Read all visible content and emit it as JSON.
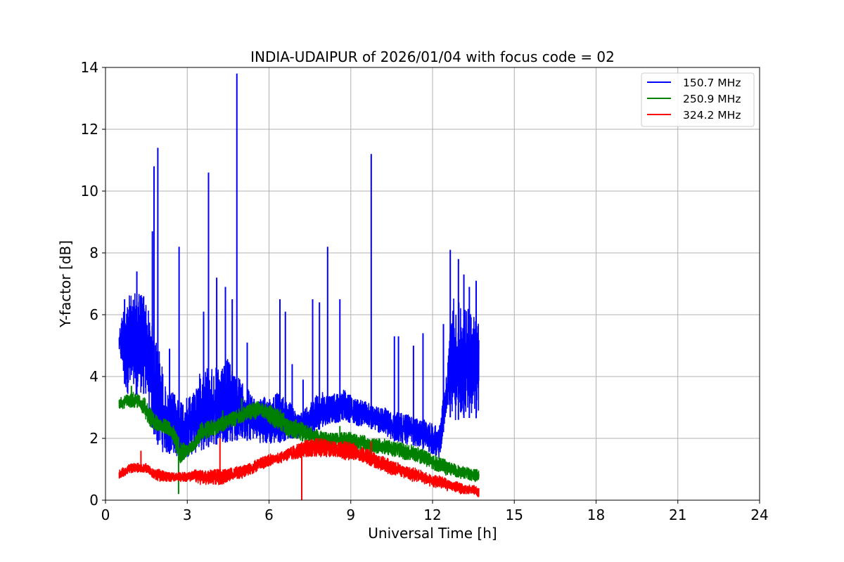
{
  "chart_data": {
    "type": "line",
    "title": "INDIA-UDAIPUR of 2026/01/04 with focus code = 02",
    "xlabel": "Universal Time [h]",
    "ylabel": "Y-factor [dB]",
    "xlim": [
      0,
      24
    ],
    "ylim": [
      0,
      14
    ],
    "xticks": [
      0,
      3,
      6,
      9,
      12,
      15,
      18,
      21,
      24
    ],
    "yticks": [
      0,
      2,
      4,
      6,
      8,
      10,
      12,
      14
    ],
    "grid": true,
    "legend_position": "top-right",
    "series": [
      {
        "name": "150.7 MHz",
        "color": "#0000ff",
        "x": [
          0.5,
          0.75,
          1.0,
          1.25,
          1.5,
          1.75,
          2.0,
          2.25,
          2.5,
          2.75,
          3.0,
          3.25,
          3.5,
          3.75,
          4.0,
          4.25,
          4.5,
          4.75,
          5.0,
          5.25,
          5.5,
          5.75,
          6.0,
          6.25,
          6.5,
          6.75,
          7.0,
          7.25,
          7.5,
          7.75,
          8.0,
          8.25,
          8.5,
          8.75,
          9.0,
          9.25,
          9.5,
          9.75,
          10.0,
          10.25,
          10.5,
          10.75,
          11.0,
          11.25,
          11.5,
          11.75,
          12.0,
          12.25,
          12.5,
          12.75,
          13.0,
          13.25,
          13.5,
          13.7
        ],
        "upper": [
          5.5,
          6.7,
          6.6,
          6.9,
          6.5,
          5.5,
          4.8,
          3.4,
          3.5,
          3.3,
          3.3,
          3.6,
          4.2,
          4.4,
          4.3,
          4.2,
          4.6,
          4.2,
          3.8,
          3.6,
          3.2,
          3.3,
          3.4,
          3.5,
          3.4,
          3.2,
          2.8,
          2.9,
          3.2,
          3.4,
          3.5,
          3.4,
          3.5,
          3.6,
          3.4,
          3.3,
          3.2,
          3.1,
          3.0,
          3.0,
          2.8,
          2.9,
          2.8,
          2.7,
          2.6,
          2.6,
          2.5,
          2.4,
          4.0,
          6.7,
          6.4,
          6.3,
          6.0,
          5.8
        ],
        "lower": [
          4.8,
          3.5,
          3.3,
          3.5,
          3.4,
          2.2,
          1.6,
          1.5,
          1.5,
          1.3,
          1.4,
          1.5,
          1.6,
          1.7,
          1.8,
          1.8,
          1.9,
          1.9,
          2.0,
          1.9,
          2.0,
          1.8,
          1.8,
          1.8,
          1.9,
          2.0,
          2.0,
          2.0,
          2.1,
          2.2,
          2.4,
          2.5,
          2.5,
          2.6,
          2.5,
          2.4,
          2.4,
          2.3,
          2.2,
          2.1,
          1.9,
          1.9,
          1.8,
          1.8,
          1.7,
          1.6,
          1.5,
          1.3,
          2.8,
          2.6,
          2.6,
          2.7,
          2.6,
          2.7
        ],
        "spikes": [
          {
            "x": 0.7,
            "y": 6.5
          },
          {
            "x": 1.15,
            "y": 7.4
          },
          {
            "x": 1.4,
            "y": 6.6
          },
          {
            "x": 1.72,
            "y": 8.7
          },
          {
            "x": 1.78,
            "y": 10.8
          },
          {
            "x": 1.92,
            "y": 11.4
          },
          {
            "x": 2.35,
            "y": 4.9
          },
          {
            "x": 2.7,
            "y": 8.2
          },
          {
            "x": 3.6,
            "y": 6.1
          },
          {
            "x": 3.78,
            "y": 10.6
          },
          {
            "x": 4.08,
            "y": 7.2
          },
          {
            "x": 4.4,
            "y": 6.9
          },
          {
            "x": 4.65,
            "y": 6.5
          },
          {
            "x": 4.82,
            "y": 13.8
          },
          {
            "x": 5.2,
            "y": 5.1
          },
          {
            "x": 6.4,
            "y": 6.5
          },
          {
            "x": 6.6,
            "y": 6.1
          },
          {
            "x": 6.85,
            "y": 4.4
          },
          {
            "x": 7.25,
            "y": 3.9
          },
          {
            "x": 7.6,
            "y": 6.5
          },
          {
            "x": 7.85,
            "y": 6.4
          },
          {
            "x": 8.15,
            "y": 8.2
          },
          {
            "x": 8.6,
            "y": 6.5
          },
          {
            "x": 9.75,
            "y": 11.2
          },
          {
            "x": 10.6,
            "y": 5.3
          },
          {
            "x": 10.75,
            "y": 5.3
          },
          {
            "x": 11.3,
            "y": 5.0
          },
          {
            "x": 11.65,
            "y": 5.4
          },
          {
            "x": 12.4,
            "y": 5.7
          },
          {
            "x": 12.65,
            "y": 8.1
          },
          {
            "x": 12.95,
            "y": 7.8
          },
          {
            "x": 13.15,
            "y": 7.3
          },
          {
            "x": 13.35,
            "y": 6.9
          },
          {
            "x": 13.6,
            "y": 7.1
          }
        ]
      },
      {
        "name": "250.9 MHz",
        "color": "#008000",
        "x": [
          0.5,
          0.75,
          1.0,
          1.25,
          1.5,
          1.75,
          2.0,
          2.25,
          2.5,
          2.75,
          3.0,
          3.25,
          3.5,
          3.75,
          4.0,
          4.25,
          4.5,
          4.75,
          5.0,
          5.25,
          5.5,
          5.75,
          6.0,
          6.25,
          6.5,
          6.75,
          7.0,
          7.25,
          7.5,
          7.75,
          8.0,
          8.25,
          8.5,
          8.75,
          9.0,
          9.25,
          9.5,
          9.75,
          10.0,
          10.25,
          10.5,
          10.75,
          11.0,
          11.25,
          11.5,
          11.75,
          12.0,
          12.25,
          12.5,
          12.75,
          13.0,
          13.25,
          13.5,
          13.7
        ],
        "upper": [
          3.3,
          3.4,
          3.5,
          3.4,
          3.3,
          2.8,
          2.7,
          2.6,
          2.4,
          1.9,
          1.8,
          2.0,
          2.5,
          2.6,
          2.6,
          2.7,
          2.8,
          2.9,
          3.0,
          3.1,
          3.2,
          3.2,
          3.1,
          3.0,
          2.9,
          2.6,
          2.6,
          2.5,
          2.4,
          2.3,
          2.2,
          2.2,
          2.2,
          2.2,
          2.2,
          2.1,
          2.1,
          2.0,
          2.0,
          2.0,
          1.9,
          1.9,
          1.8,
          1.8,
          1.7,
          1.6,
          1.5,
          1.4,
          1.3,
          1.2,
          1.1,
          1.1,
          1.0,
          1.0
        ],
        "lower": [
          2.9,
          3.0,
          3.0,
          3.0,
          2.5,
          2.3,
          2.2,
          2.1,
          1.8,
          1.2,
          1.4,
          1.6,
          1.9,
          2.0,
          2.1,
          2.2,
          2.3,
          2.4,
          2.5,
          2.6,
          2.6,
          2.7,
          2.5,
          2.3,
          2.2,
          2.0,
          2.0,
          1.9,
          1.8,
          1.8,
          1.7,
          1.7,
          1.7,
          1.7,
          1.7,
          1.6,
          1.6,
          1.5,
          1.5,
          1.5,
          1.4,
          1.4,
          1.3,
          1.3,
          1.2,
          1.1,
          1.0,
          0.9,
          0.8,
          0.8,
          0.7,
          0.7,
          0.6,
          0.6
        ],
        "spikes": [
          {
            "x": 0.95,
            "y": 3.7
          },
          {
            "x": 2.68,
            "y": 0.2
          },
          {
            "x": 4.3,
            "y": 2.9
          },
          {
            "x": 5.0,
            "y": 3.3
          },
          {
            "x": 7.0,
            "y": 2.3
          },
          {
            "x": 8.6,
            "y": 2.4
          }
        ]
      },
      {
        "name": "324.2 MHz",
        "color": "#ff0000",
        "x": [
          0.5,
          0.75,
          1.0,
          1.25,
          1.5,
          1.75,
          2.0,
          2.25,
          2.5,
          2.75,
          3.0,
          3.25,
          3.5,
          3.75,
          4.0,
          4.25,
          4.5,
          4.75,
          5.0,
          5.25,
          5.5,
          5.75,
          6.0,
          6.25,
          6.5,
          6.75,
          7.0,
          7.25,
          7.5,
          7.75,
          8.0,
          8.25,
          8.5,
          8.75,
          9.0,
          9.25,
          9.5,
          9.75,
          10.0,
          10.25,
          10.5,
          10.75,
          11.0,
          11.25,
          11.5,
          11.75,
          12.0,
          12.25,
          12.5,
          12.75,
          13.0,
          13.25,
          13.5,
          13.7
        ],
        "upper": [
          1.0,
          1.1,
          1.2,
          1.2,
          1.2,
          1.0,
          1.0,
          0.9,
          0.9,
          0.9,
          0.9,
          1.0,
          1.0,
          1.0,
          1.0,
          1.0,
          1.0,
          1.1,
          1.1,
          1.2,
          1.3,
          1.4,
          1.5,
          1.5,
          1.6,
          1.7,
          1.8,
          1.9,
          2.0,
          2.0,
          2.0,
          1.9,
          1.9,
          1.9,
          1.9,
          1.8,
          1.7,
          1.6,
          1.5,
          1.4,
          1.3,
          1.2,
          1.1,
          1.1,
          1.0,
          0.9,
          0.8,
          0.8,
          0.7,
          0.6,
          0.6,
          0.5,
          0.5,
          0.4
        ],
        "lower": [
          0.7,
          0.8,
          0.9,
          0.9,
          0.9,
          0.7,
          0.6,
          0.6,
          0.6,
          0.6,
          0.6,
          0.6,
          0.5,
          0.5,
          0.5,
          0.5,
          0.6,
          0.7,
          0.7,
          0.8,
          0.9,
          1.0,
          1.1,
          1.2,
          1.2,
          1.3,
          1.3,
          1.4,
          1.4,
          1.4,
          1.4,
          1.4,
          1.4,
          1.3,
          1.3,
          1.3,
          1.2,
          1.1,
          1.0,
          0.9,
          0.8,
          0.8,
          0.7,
          0.6,
          0.6,
          0.5,
          0.4,
          0.4,
          0.3,
          0.3,
          0.2,
          0.2,
          0.2,
          0.1
        ],
        "spikes": [
          {
            "x": 1.3,
            "y": 1.6
          },
          {
            "x": 4.2,
            "y": 2.0
          },
          {
            "x": 7.2,
            "y": 0.0
          },
          {
            "x": 9.75,
            "y": 1.9
          }
        ]
      }
    ]
  }
}
